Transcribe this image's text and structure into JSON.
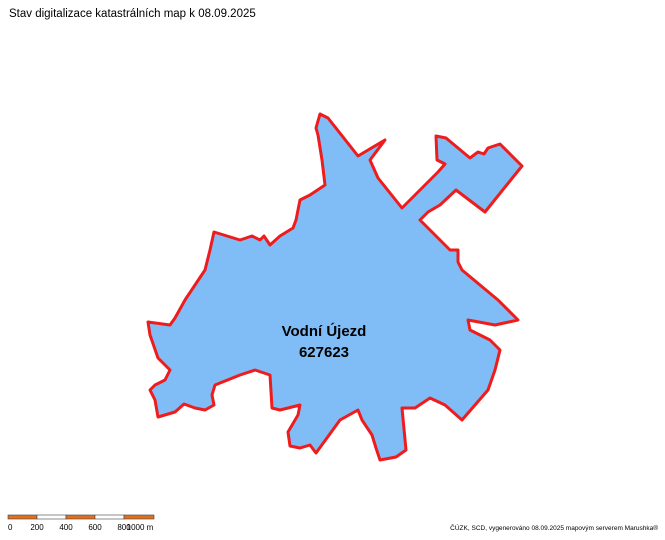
{
  "title": "Stav digitalizace katastrálních map k 08.09.2025",
  "area": {
    "name": "Vodní Újezd",
    "code": "627623"
  },
  "scale_bar": {
    "labels": [
      "0",
      "200",
      "400",
      "600",
      "800",
      "1000 m"
    ]
  },
  "attribution": "ČÚZK, SCD, vygenerováno 08.09.2025 mapovým serverem Marushka®"
}
